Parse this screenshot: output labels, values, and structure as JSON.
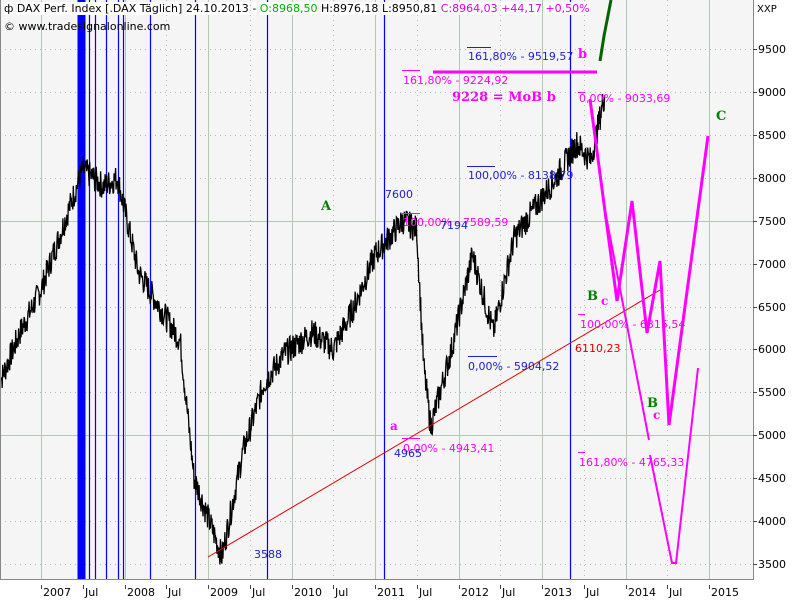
{
  "header": {
    "symbol_icon": "candlestick-icon",
    "instrument": "DAX Perf. Index [.DAX  Täglich]",
    "date": "24.10.2013",
    "separator": "-",
    "open": "O:8968,50",
    "high": "H:8976,18",
    "low": "L:8950,81",
    "close": "C:8964,03",
    "change": "+44,17",
    "change_pct": "+0,50%",
    "copyright": "© www.tradesignalonline.com"
  },
  "colors": {
    "background": "#f5f5f5",
    "grid_major": "#b4c8b4",
    "grid_minor": "#b8b8b8",
    "price": "#000000",
    "vertical_markers": "#0000ff",
    "fib_blue": "#2020d0",
    "fib_magenta": "#ff00ff",
    "trendline": "#e00000",
    "projection_magenta": "#ff00ff",
    "projection_green": "#006400",
    "wave_green": "#008000",
    "open_green": "#00b000",
    "close_magenta": "#e000e0"
  },
  "chart_data": {
    "type": "line",
    "title": "DAX Perf. Index [.DAX Täglich] 24.10.2013",
    "xlabel": "",
    "ylabel": "XXP",
    "ylim": [
      3400,
      9900
    ],
    "y_ticks": [
      3500,
      4000,
      4500,
      5000,
      5500,
      6000,
      6500,
      7000,
      7500,
      8000,
      8500,
      9000,
      9500
    ],
    "x_ticks": [
      "2007",
      "Jul",
      "2008",
      "Jul",
      "2009",
      "Jul",
      "2010",
      "Jul",
      "2011",
      "Jul",
      "2012",
      "Jul",
      "2013",
      "Jul",
      "2014",
      "Jul",
      "2015"
    ],
    "grid": true,
    "series": [
      {
        "name": "DAX daily close",
        "x": [
          "2006-07",
          "2006-10",
          "2007-01",
          "2007-04",
          "2007-07",
          "2007-10",
          "2007-12",
          "2008-03",
          "2008-06",
          "2008-09",
          "2008-11",
          "2009-03",
          "2009-06",
          "2009-09",
          "2009-12",
          "2010-04",
          "2010-07",
          "2010-10",
          "2011-01",
          "2011-05",
          "2011-07",
          "2011-08",
          "2011-09",
          "2011-12",
          "2012-03",
          "2012-06",
          "2012-09",
          "2012-12",
          "2013-03",
          "2013-06",
          "2013-08",
          "2013-10"
        ],
        "values": [
          5600,
          6200,
          6700,
          7400,
          8100,
          7900,
          8000,
          6900,
          6500,
          6100,
          4500,
          3588,
          4800,
          5600,
          5950,
          6200,
          6000,
          6500,
          7100,
          7500,
          7400,
          5800,
          5100,
          6000,
          7100,
          6200,
          7300,
          7650,
          8000,
          8400,
          8200,
          8964
        ]
      },
      {
        "name": "Projection (magenta)",
        "x": [
          "2013-10",
          "2014-01",
          "2014-02",
          "2014-04",
          "2014-06",
          "2014-07",
          "2014-08",
          "2014-12"
        ],
        "values": [
          9000,
          7000,
          6550,
          7720,
          6200,
          7040,
          5100,
          8450
        ]
      },
      {
        "name": "Projection alternate (thin magenta)",
        "x": [
          "2014-04",
          "2014-07",
          "2014-08",
          "2014-09",
          "2014-11"
        ],
        "values": [
          6800,
          4700,
          3500,
          5000,
          5800
        ]
      },
      {
        "name": "Projection (green)",
        "x": [
          "2013-12",
          "2014-01"
        ],
        "values": [
          9380,
          9900
        ]
      },
      {
        "name": "Trendline",
        "x": [
          "2009-03",
          "2014-07"
        ],
        "values": [
          3588,
          6620
        ]
      }
    ],
    "annotations": [
      {
        "text": "161,80% - 9519,57",
        "color": "blue",
        "value": 9519.57
      },
      {
        "text": "161,80% - 9224,92",
        "color": "magenta",
        "value": 9224.92
      },
      {
        "text": "9228 = MoB b",
        "color": "magenta"
      },
      {
        "text": "b",
        "color": "magenta"
      },
      {
        "text": "0,00% - 9033,69",
        "color": "magenta",
        "value": 9033.69
      },
      {
        "text": "100,00% - 8138,79",
        "color": "blue",
        "value": 8138.79
      },
      {
        "text": "7600",
        "color": "blue",
        "value": 7600
      },
      {
        "text": "100,00% - 7589,59",
        "color": "magenta",
        "value": 7589.59
      },
      {
        "text": "7194",
        "color": "blue",
        "value": 7194
      },
      {
        "text": "A",
        "color": "green"
      },
      {
        "text": "C",
        "color": "green"
      },
      {
        "text": "B",
        "color": "green"
      },
      {
        "text": "c",
        "color": "magenta"
      },
      {
        "text": "100,00% - 6315,54",
        "color": "magenta",
        "value": 6315.54
      },
      {
        "text": "6110,23",
        "color": "red",
        "value": 6110.23
      },
      {
        "text": "0,00% - 5904,52",
        "color": "blue",
        "value": 5904.52
      },
      {
        "text": "a",
        "color": "magenta"
      },
      {
        "text": "0,00% - 4943,41",
        "color": "magenta",
        "value": 4943.41
      },
      {
        "text": "4965",
        "color": "blue",
        "value": 4965
      },
      {
        "text": "B",
        "color": "green"
      },
      {
        "text": "c",
        "color": "magenta"
      },
      {
        "text": "161,80% - 4765,33",
        "color": "magenta",
        "value": 4765.33
      },
      {
        "text": "3588",
        "color": "blue",
        "value": 3588
      }
    ]
  },
  "axis": {
    "unit_label": "XXP",
    "y_labels": [
      "9500",
      "9000",
      "8500",
      "8000",
      "7500",
      "7000",
      "6500",
      "6000",
      "5500",
      "5000",
      "4500",
      "4000",
      "3500"
    ],
    "x_labels": [
      "2007",
      "Jul",
      "2008",
      "Jul",
      "2009",
      "Jul",
      "2010",
      "Jul",
      "2011",
      "Jul",
      "2012",
      "Jul",
      "2013",
      "Jul",
      "2014",
      "Jul",
      "2015"
    ]
  }
}
